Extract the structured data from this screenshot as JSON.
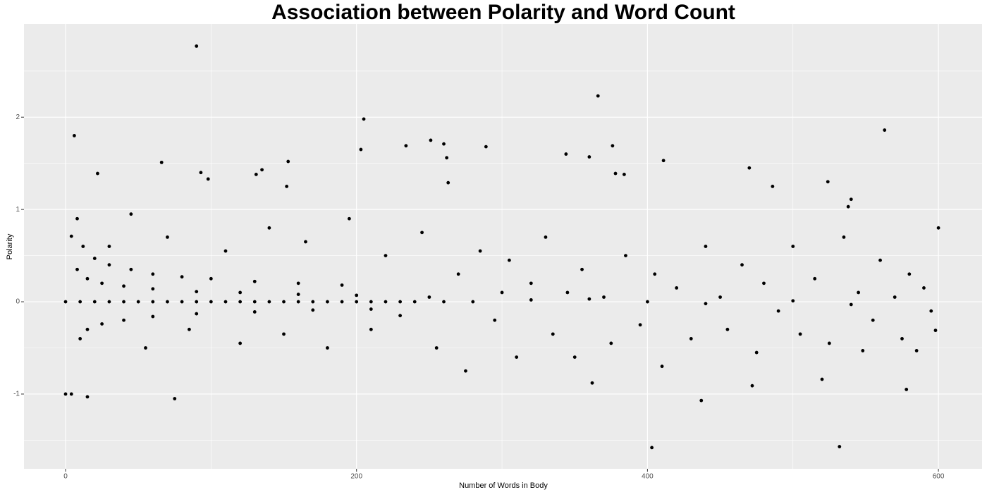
{
  "chart_data": {
    "type": "scatter",
    "title": "Association between Polarity and Word Count",
    "x_label": "Number of Words in Body",
    "y_label": "Polarity",
    "color": "#000000",
    "grid": true,
    "xlim": [
      -28.6,
      630
    ],
    "ylim": [
      -1.81,
      3.01
    ],
    "xticks": [
      0,
      200,
      400,
      600
    ],
    "yticks": [
      -1,
      0,
      1,
      2
    ],
    "x": [
      0,
      4,
      6,
      90,
      205,
      366,
      563,
      403,
      532,
      75,
      15,
      437,
      578,
      520,
      362,
      472,
      66,
      22,
      93,
      98,
      135,
      131,
      153,
      152,
      203,
      234,
      251,
      260,
      262,
      263,
      289,
      344,
      360,
      376,
      378,
      384,
      411,
      470,
      486,
      524,
      540,
      4,
      8,
      600,
      598,
      585,
      548,
      538,
      12,
      20,
      30,
      45,
      60,
      80,
      100,
      130,
      160,
      190,
      8,
      15,
      25,
      40,
      60,
      90,
      120,
      160,
      200,
      10,
      15,
      25,
      40,
      60,
      90,
      130,
      170,
      210,
      0,
      10,
      20,
      30,
      40,
      50,
      60,
      70,
      80,
      90,
      100,
      110,
      120,
      130,
      140,
      150,
      160,
      170,
      180,
      190,
      200,
      210,
      220,
      230,
      240,
      30,
      45,
      55,
      70,
      85,
      110,
      120,
      140,
      150,
      165,
      180,
      195,
      210,
      220,
      230,
      245,
      255,
      270,
      275,
      285,
      295,
      305,
      310,
      320,
      330,
      335,
      345,
      350,
      355,
      370,
      375,
      385,
      395,
      405,
      410,
      420,
      430,
      440,
      450,
      455,
      465,
      475,
      480,
      490,
      500,
      505,
      515,
      525,
      535,
      545,
      555,
      560,
      570,
      575,
      580,
      590,
      595,
      300,
      250,
      400,
      260,
      280,
      320,
      360,
      440,
      500,
      540
    ],
    "values": [
      -1,
      -1,
      1.8,
      2.77,
      1.98,
      2.23,
      1.86,
      -1.58,
      -1.57,
      -1.05,
      -1.03,
      -1.07,
      -0.95,
      -0.84,
      -0.88,
      -0.91,
      1.51,
      1.39,
      1.4,
      1.33,
      1.43,
      1.38,
      1.52,
      1.25,
      1.65,
      1.69,
      1.75,
      1.71,
      1.56,
      1.29,
      1.68,
      1.6,
      1.57,
      1.69,
      1.39,
      1.38,
      1.53,
      1.45,
      1.25,
      1.3,
      1.11,
      0.71,
      0.9,
      0.8,
      -0.31,
      -0.53,
      -0.53,
      1.03,
      0.6,
      0.47,
      0.4,
      0.35,
      0.3,
      0.27,
      0.25,
      0.22,
      0.2,
      0.18,
      0.35,
      0.25,
      0.2,
      0.17,
      0.14,
      0.11,
      0.1,
      0.08,
      0.07,
      -0.4,
      -0.3,
      -0.24,
      -0.2,
      -0.16,
      -0.13,
      -0.11,
      -0.09,
      -0.08,
      0,
      0,
      0,
      0,
      0,
      0,
      0,
      0,
      0,
      0,
      0,
      0,
      0,
      0,
      0,
      0,
      0,
      0,
      0,
      0,
      0,
      0,
      0,
      0,
      0,
      0.6,
      0.95,
      -0.5,
      0.7,
      -0.3,
      0.55,
      -0.45,
      0.8,
      -0.35,
      0.65,
      -0.5,
      0.9,
      -0.3,
      0.5,
      -0.15,
      0.75,
      -0.5,
      0.3,
      -0.75,
      0.55,
      -0.2,
      0.45,
      -0.6,
      0.2,
      0.7,
      -0.35,
      0.1,
      -0.6,
      0.35,
      0.05,
      -0.45,
      0.5,
      -0.25,
      0.3,
      -0.7,
      0.15,
      -0.4,
      0.6,
      0.05,
      -0.3,
      0.4,
      -0.55,
      0.2,
      -0.1,
      0.6,
      -0.35,
      0.25,
      -0.45,
      0.7,
      0.1,
      -0.2,
      0.45,
      0.05,
      -0.4,
      0.3,
      0.15,
      -0.1,
      0.1,
      0.05,
      0,
      0,
      0,
      0.02,
      0.03,
      -0.02,
      0.01,
      -0.03
    ]
  }
}
